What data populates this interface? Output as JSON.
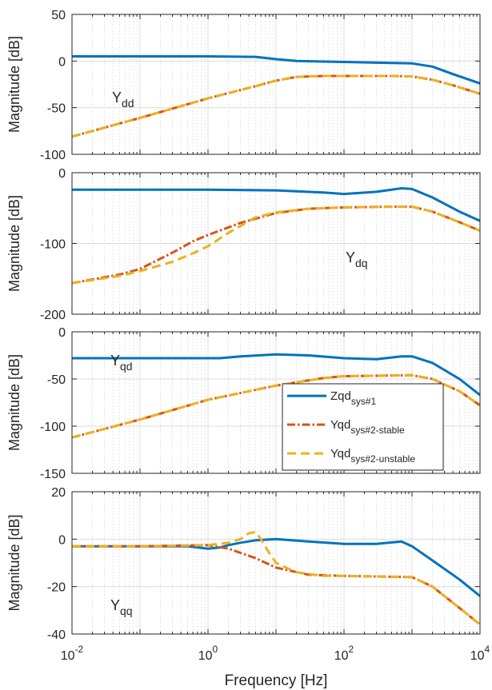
{
  "chart_data": [
    {
      "type": "line",
      "annotation": {
        "main": "Y",
        "sub": "dd"
      },
      "ylabel": "Magnitude [dB]",
      "xscale": "log",
      "xlim": [
        0.01,
        10000
      ],
      "ylim": [
        -100,
        50
      ],
      "yticks": [
        "50",
        "0",
        "-50",
        "-100"
      ],
      "grid": true,
      "series": [
        {
          "key": "zqd",
          "color": "#0072BD",
          "style": "solid",
          "points": [
            [
              0.01,
              5
            ],
            [
              0.1,
              5
            ],
            [
              1,
              5
            ],
            [
              5,
              4.5
            ],
            [
              10,
              2
            ],
            [
              20,
              0
            ],
            [
              100,
              -1
            ],
            [
              500,
              -2
            ],
            [
              1000,
              -2.5
            ],
            [
              2000,
              -6
            ],
            [
              4000,
              -14
            ],
            [
              10000,
              -24
            ]
          ]
        },
        {
          "key": "stable",
          "color": "#D95319",
          "style": "dashdot",
          "points": [
            [
              0.01,
              -81
            ],
            [
              0.1,
              -61
            ],
            [
              1,
              -40
            ],
            [
              5,
              -27
            ],
            [
              10,
              -21
            ],
            [
              20,
              -17
            ],
            [
              50,
              -16
            ],
            [
              100,
              -16
            ],
            [
              500,
              -16
            ],
            [
              1000,
              -16.5
            ],
            [
              2000,
              -20
            ],
            [
              4000,
              -26
            ],
            [
              10000,
              -35
            ]
          ]
        },
        {
          "key": "unstable",
          "color": "#EDB120",
          "style": "dashed",
          "points": [
            [
              0.01,
              -81
            ],
            [
              0.1,
              -61
            ],
            [
              1,
              -40
            ],
            [
              5,
              -27
            ],
            [
              10,
              -21
            ],
            [
              20,
              -17
            ],
            [
              50,
              -16
            ],
            [
              100,
              -16
            ],
            [
              500,
              -16
            ],
            [
              1000,
              -16.5
            ],
            [
              2000,
              -20
            ],
            [
              4000,
              -26
            ],
            [
              10000,
              -35
            ]
          ]
        }
      ]
    },
    {
      "type": "line",
      "annotation": {
        "main": "Y",
        "sub": "dq"
      },
      "ylabel": "Magnitude [dB]",
      "xscale": "log",
      "xlim": [
        0.01,
        10000
      ],
      "ylim": [
        -200,
        0
      ],
      "yticks": [
        "0",
        "-100",
        "-200"
      ],
      "grid": true,
      "series": [
        {
          "key": "zqd",
          "color": "#0072BD",
          "style": "solid",
          "points": [
            [
              0.01,
              -24
            ],
            [
              0.1,
              -24
            ],
            [
              1,
              -24
            ],
            [
              10,
              -25
            ],
            [
              50,
              -28
            ],
            [
              100,
              -30
            ],
            [
              300,
              -27
            ],
            [
              700,
              -22
            ],
            [
              1000,
              -23
            ],
            [
              2000,
              -35
            ],
            [
              5000,
              -55
            ],
            [
              10000,
              -68
            ]
          ]
        },
        {
          "key": "stable",
          "color": "#D95319",
          "style": "dashdot",
          "points": [
            [
              0.01,
              -156
            ],
            [
              0.05,
              -144
            ],
            [
              0.1,
              -136
            ],
            [
              0.3,
              -113
            ],
            [
              0.6,
              -97
            ],
            [
              1,
              -88
            ],
            [
              3,
              -71
            ],
            [
              10,
              -57
            ],
            [
              30,
              -51
            ],
            [
              100,
              -49
            ],
            [
              500,
              -48
            ],
            [
              1000,
              -48
            ],
            [
              2000,
              -55
            ],
            [
              5000,
              -70
            ],
            [
              10000,
              -82
            ]
          ]
        },
        {
          "key": "unstable",
          "color": "#EDB120",
          "style": "dashed",
          "points": [
            [
              0.01,
              -156
            ],
            [
              0.05,
              -146
            ],
            [
              0.1,
              -139
            ],
            [
              0.3,
              -126
            ],
            [
              0.6,
              -114
            ],
            [
              1,
              -104
            ],
            [
              2,
              -85
            ],
            [
              5,
              -63
            ],
            [
              10,
              -56
            ],
            [
              30,
              -51
            ],
            [
              100,
              -49
            ],
            [
              500,
              -48
            ],
            [
              1000,
              -48
            ],
            [
              2000,
              -55
            ],
            [
              5000,
              -70
            ],
            [
              10000,
              -82
            ]
          ]
        }
      ]
    },
    {
      "type": "line",
      "annotation": {
        "main": "Y",
        "sub": "qd"
      },
      "ylabel": "Magnitude [dB]",
      "xscale": "log",
      "xlim": [
        0.01,
        10000
      ],
      "ylim": [
        -150,
        0
      ],
      "yticks": [
        "0",
        "-50",
        "-100",
        "-150"
      ],
      "grid": true,
      "legend": {
        "position": "right",
        "entries": [
          {
            "key": "zqd",
            "main": "Zqd",
            "sub": "sys#1"
          },
          {
            "key": "stable",
            "main": "Yqd",
            "sub": "sys#2-stable"
          },
          {
            "key": "unstable",
            "main": "Yqd",
            "sub": "sys#2-unstable"
          }
        ]
      },
      "series": [
        {
          "key": "zqd",
          "color": "#0072BD",
          "style": "solid",
          "points": [
            [
              0.01,
              -28
            ],
            [
              0.1,
              -28
            ],
            [
              1,
              -28
            ],
            [
              1.5,
              -28
            ],
            [
              3,
              -26
            ],
            [
              10,
              -24
            ],
            [
              30,
              -25
            ],
            [
              100,
              -28
            ],
            [
              300,
              -29
            ],
            [
              700,
              -26
            ],
            [
              1000,
              -26
            ],
            [
              2000,
              -33
            ],
            [
              5000,
              -50
            ],
            [
              10000,
              -67
            ]
          ]
        },
        {
          "key": "stable",
          "color": "#D95319",
          "style": "dashdot",
          "points": [
            [
              0.01,
              -112
            ],
            [
              0.1,
              -93
            ],
            [
              1,
              -72
            ],
            [
              10,
              -57
            ],
            [
              50,
              -49
            ],
            [
              100,
              -47
            ],
            [
              1000,
              -46
            ],
            [
              2000,
              -50
            ],
            [
              5000,
              -63
            ],
            [
              10000,
              -78
            ]
          ]
        },
        {
          "key": "unstable",
          "color": "#EDB120",
          "style": "dashed",
          "points": [
            [
              0.01,
              -112
            ],
            [
              0.1,
              -93
            ],
            [
              1,
              -72
            ],
            [
              10,
              -57
            ],
            [
              50,
              -49
            ],
            [
              100,
              -47
            ],
            [
              1000,
              -46
            ],
            [
              2000,
              -50
            ],
            [
              5000,
              -63
            ],
            [
              10000,
              -78
            ]
          ]
        }
      ]
    },
    {
      "type": "line",
      "annotation": {
        "main": "Y",
        "sub": "qq"
      },
      "ylabel": "Magnitude [dB]",
      "xlabel": "Frequency [Hz]",
      "xscale": "log",
      "xlim": [
        0.01,
        10000
      ],
      "ylim": [
        -40,
        20
      ],
      "yticks": [
        "20",
        "0",
        "-20",
        "-40"
      ],
      "xticks": [
        {
          "base": "10",
          "exp": "-2"
        },
        {
          "base": "10",
          "exp": "0"
        },
        {
          "base": "10",
          "exp": "2"
        },
        {
          "base": "10",
          "exp": "4"
        }
      ],
      "grid": true,
      "series": [
        {
          "key": "zqd",
          "color": "#0072BD",
          "style": "solid",
          "points": [
            [
              0.01,
              -3
            ],
            [
              0.1,
              -3
            ],
            [
              0.5,
              -3
            ],
            [
              1,
              -4
            ],
            [
              1.5,
              -3.5
            ],
            [
              2,
              -2.5
            ],
            [
              3,
              -1.5
            ],
            [
              5,
              -0.5
            ],
            [
              10,
              0
            ],
            [
              30,
              -1
            ],
            [
              100,
              -2
            ],
            [
              300,
              -2
            ],
            [
              700,
              -1
            ],
            [
              1000,
              -3
            ],
            [
              2000,
              -9
            ],
            [
              5000,
              -17
            ],
            [
              10000,
              -24
            ]
          ]
        },
        {
          "key": "stable",
          "color": "#D95319",
          "style": "dashdot",
          "points": [
            [
              0.01,
              -3
            ],
            [
              0.1,
              -3
            ],
            [
              1,
              -2.5
            ],
            [
              2,
              -4
            ],
            [
              5,
              -8
            ],
            [
              10,
              -12
            ],
            [
              30,
              -15
            ],
            [
              100,
              -15.5
            ],
            [
              1000,
              -16
            ],
            [
              2000,
              -20
            ],
            [
              5000,
              -29
            ],
            [
              10000,
              -36
            ]
          ]
        },
        {
          "key": "unstable",
          "color": "#EDB120",
          "style": "dashed",
          "points": [
            [
              0.01,
              -3
            ],
            [
              0.1,
              -3
            ],
            [
              1,
              -2.5
            ],
            [
              2,
              -1.5
            ],
            [
              3,
              0
            ],
            [
              4,
              2.5
            ],
            [
              5,
              3
            ],
            [
              6,
              0
            ],
            [
              8,
              -6
            ],
            [
              10,
              -10
            ],
            [
              20,
              -14
            ],
            [
              50,
              -15.5
            ],
            [
              100,
              -15.5
            ],
            [
              1000,
              -16
            ],
            [
              2000,
              -20
            ],
            [
              5000,
              -29
            ],
            [
              10000,
              -36
            ]
          ]
        }
      ]
    }
  ]
}
